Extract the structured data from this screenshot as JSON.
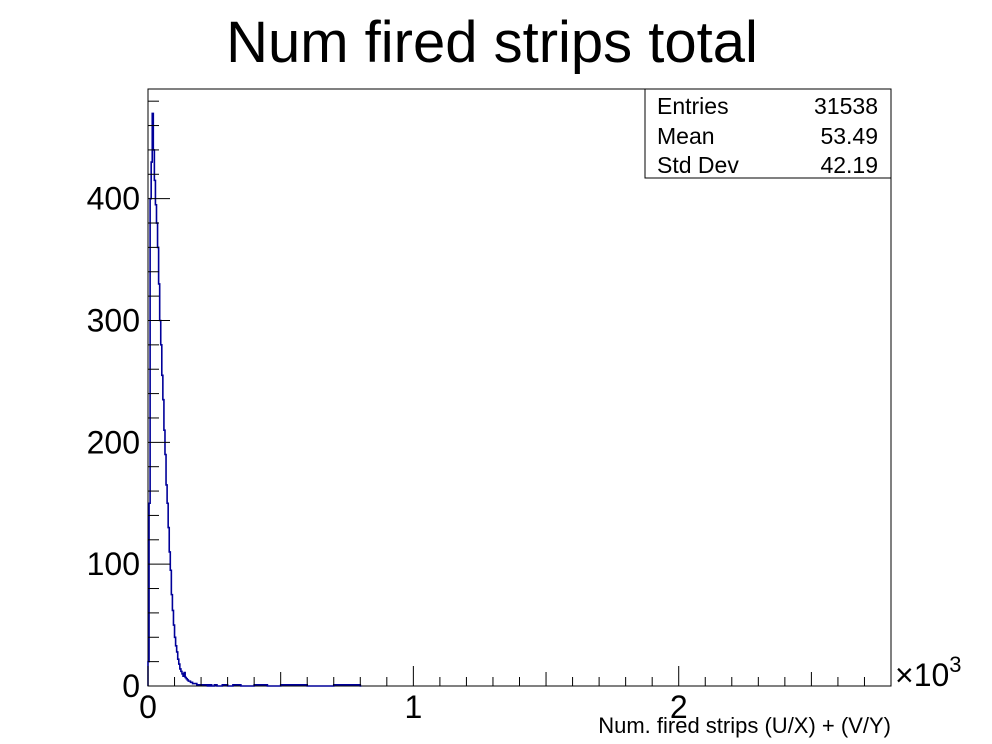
{
  "chart_data": {
    "type": "histogram",
    "title": "Num fired strips total",
    "xlabel": "Num. fired strips (U/X) + (V/Y)",
    "ylabel": "",
    "x_multiplier_label": "×10",
    "x_multiplier_exponent": "3",
    "xlim": [
      0,
      2.8
    ],
    "ylim": [
      0,
      490
    ],
    "x_ticks": [
      {
        "value": 0,
        "label": "0"
      },
      {
        "value": 1,
        "label": "1"
      },
      {
        "value": 2,
        "label": "2"
      }
    ],
    "y_ticks": [
      {
        "value": 0,
        "label": "0"
      },
      {
        "value": 100,
        "label": "100"
      },
      {
        "value": 200,
        "label": "200"
      },
      {
        "value": 300,
        "label": "300"
      },
      {
        "value": 400,
        "label": "400"
      }
    ],
    "grid": false,
    "line_color": "#000099",
    "series": [
      {
        "x": [
          0.0,
          0.004,
          0.008,
          0.012,
          0.016,
          0.02,
          0.024,
          0.028,
          0.032,
          0.036,
          0.04,
          0.044,
          0.048,
          0.052,
          0.056,
          0.06,
          0.064,
          0.068,
          0.072,
          0.076,
          0.08,
          0.084,
          0.088,
          0.092,
          0.096,
          0.1,
          0.104,
          0.108,
          0.112,
          0.116,
          0.12,
          0.124,
          0.128,
          0.132,
          0.136,
          0.14,
          0.144,
          0.148,
          0.152,
          0.156,
          0.16,
          0.164,
          0.168,
          0.172,
          0.176,
          0.18,
          0.184,
          0.188,
          0.192,
          0.196,
          0.2,
          0.204,
          0.208,
          0.212,
          0.216,
          0.22,
          0.224,
          0.228,
          0.232,
          0.236,
          0.24,
          0.25,
          0.26,
          0.28,
          0.3,
          0.32,
          0.35,
          0.4,
          0.45,
          0.5,
          0.6,
          0.7,
          0.8
        ],
        "values": [
          20,
          150,
          400,
          430,
          470,
          440,
          415,
          395,
          380,
          360,
          330,
          300,
          280,
          255,
          235,
          210,
          190,
          165,
          150,
          130,
          110,
          95,
          75,
          62,
          50,
          40,
          33,
          28,
          22,
          18,
          14,
          12,
          10,
          8,
          11,
          7,
          6,
          5,
          4,
          4,
          3,
          3,
          2,
          2,
          2,
          2,
          1,
          1,
          1,
          1,
          1,
          1,
          1,
          1,
          1,
          1,
          0,
          1,
          0,
          1,
          0,
          1,
          0,
          1,
          0,
          1,
          0,
          1,
          0,
          1,
          0,
          1,
          0
        ]
      }
    ]
  },
  "stats": {
    "entries_label": "Entries",
    "entries_value": "31538",
    "mean_label": "Mean",
    "mean_value": "53.49",
    "stddev_label": "Std Dev",
    "stddev_value": "42.19"
  }
}
